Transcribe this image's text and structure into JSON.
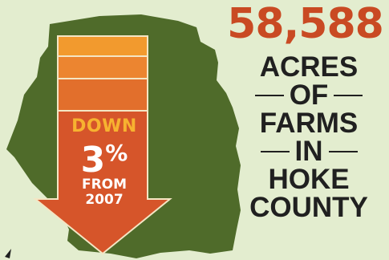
{
  "stat": {
    "number": "58,588",
    "label_lines": [
      "ACRES",
      "OF",
      "FARMS",
      "IN",
      "HOKE",
      "COUNTY"
    ]
  },
  "change": {
    "direction": "DOWN",
    "percent_value": "3",
    "percent_symbol": "%",
    "from_label": "FROM",
    "year": "2007"
  },
  "colors": {
    "background": "#e3edcf",
    "map_fill": "#4f6b2a",
    "arrow_top": "#f29a2e",
    "arrow_mid": "#ec8530",
    "arrow_body": "#d6552a",
    "accent_number": "#c94a23",
    "label_text": "#202020"
  }
}
